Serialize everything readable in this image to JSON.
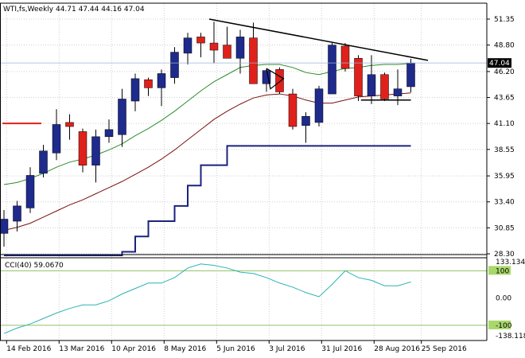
{
  "header": {
    "symbol_line": "WTI,fs,Weekly  44.71 47.44 44.16 47.04"
  },
  "indicator": {
    "label": "CCI(40) 59.0670",
    "levels": [
      "100",
      "-100"
    ]
  },
  "colors": {
    "bull": "#1e2a8c",
    "bear": "#e0211b",
    "ma_fast": "#2e8b2e",
    "ma_slow": "#7a1010",
    "support": "#1a237e",
    "trend": "#000000",
    "cci": "#2bb3b3",
    "grid": "#cfcfcf",
    "level_line": "#90c060"
  },
  "chart_data": [
    {
      "type": "candlestick",
      "symbol": "WTI,fs",
      "timeframe": "Weekly",
      "ylim": [
        28.3,
        52.5
      ],
      "y_ticks": [
        "51.35",
        "48.80",
        "46.20",
        "43.65",
        "41.10",
        "38.55",
        "35.95",
        "33.40",
        "30.85",
        "28.30"
      ],
      "current_price": "47.04",
      "x_labels": [
        "14 Feb 2016",
        "13 Mar 2016",
        "10 Apr 2016",
        "8 May 2016",
        "5 Jun 2016",
        "3 Jul 2016",
        "31 Jul 2016",
        "28 Aug 2016",
        "25 Sep 2016"
      ],
      "candles": [
        {
          "o": 30.3,
          "h": 32.6,
          "l": 29.0,
          "c": 31.7
        },
        {
          "o": 31.5,
          "h": 33.5,
          "l": 30.5,
          "c": 33.0
        },
        {
          "o": 32.8,
          "h": 36.8,
          "l": 32.3,
          "c": 36.0
        },
        {
          "o": 36.2,
          "h": 39.0,
          "l": 35.8,
          "c": 38.4
        },
        {
          "o": 38.2,
          "h": 42.5,
          "l": 37.5,
          "c": 41.0
        },
        {
          "o": 41.2,
          "h": 42.0,
          "l": 39.5,
          "c": 40.8
        },
        {
          "o": 40.3,
          "h": 40.6,
          "l": 36.3,
          "c": 37.0
        },
        {
          "o": 37.0,
          "h": 40.5,
          "l": 35.3,
          "c": 39.8
        },
        {
          "o": 39.8,
          "h": 41.5,
          "l": 39.2,
          "c": 40.5
        },
        {
          "o": 40.0,
          "h": 44.5,
          "l": 38.8,
          "c": 43.5
        },
        {
          "o": 43.3,
          "h": 46.0,
          "l": 42.3,
          "c": 45.5
        },
        {
          "o": 45.4,
          "h": 45.6,
          "l": 43.8,
          "c": 44.6
        },
        {
          "o": 44.6,
          "h": 46.4,
          "l": 42.8,
          "c": 46.0
        },
        {
          "o": 45.6,
          "h": 48.6,
          "l": 45.0,
          "c": 48.1
        },
        {
          "o": 48.0,
          "h": 50.0,
          "l": 46.9,
          "c": 49.5
        },
        {
          "o": 49.6,
          "h": 50.0,
          "l": 47.6,
          "c": 49.0
        },
        {
          "o": 49.0,
          "h": 51.1,
          "l": 47.0,
          "c": 48.3
        },
        {
          "o": 48.8,
          "h": 50.6,
          "l": 47.5,
          "c": 47.5
        },
        {
          "o": 47.5,
          "h": 50.3,
          "l": 46.0,
          "c": 49.6
        },
        {
          "o": 49.5,
          "h": 51.0,
          "l": 45.0,
          "c": 45.0
        },
        {
          "o": 45.0,
          "h": 46.5,
          "l": 44.2,
          "c": 46.3
        },
        {
          "o": 46.4,
          "h": 46.6,
          "l": 44.0,
          "c": 44.2
        },
        {
          "o": 44.0,
          "h": 44.5,
          "l": 40.5,
          "c": 40.8
        },
        {
          "o": 40.9,
          "h": 42.2,
          "l": 39.2,
          "c": 41.8
        },
        {
          "o": 41.2,
          "h": 44.8,
          "l": 40.8,
          "c": 44.5
        },
        {
          "o": 44.0,
          "h": 49.0,
          "l": 44.0,
          "c": 48.8
        },
        {
          "o": 48.7,
          "h": 49.0,
          "l": 46.2,
          "c": 46.5
        },
        {
          "o": 47.5,
          "h": 47.8,
          "l": 43.3,
          "c": 43.8
        },
        {
          "o": 43.8,
          "h": 47.8,
          "l": 43.0,
          "c": 45.9
        },
        {
          "o": 45.9,
          "h": 46.1,
          "l": 43.3,
          "c": 43.5
        },
        {
          "o": 43.8,
          "h": 46.4,
          "l": 42.9,
          "c": 44.5
        },
        {
          "o": 44.71,
          "h": 47.44,
          "l": 44.16,
          "c": 47.04
        }
      ],
      "ma_fast": [
        35.1,
        35.3,
        35.7,
        36.2,
        36.8,
        37.3,
        37.6,
        38.0,
        38.5,
        39.1,
        39.9,
        40.6,
        41.4,
        42.3,
        43.3,
        44.3,
        45.2,
        45.9,
        46.6,
        46.8,
        46.9,
        46.9,
        46.6,
        46.1,
        45.9,
        46.2,
        46.5,
        46.6,
        46.8,
        46.9,
        46.9,
        47.0
      ],
      "ma_slow": [
        30.6,
        30.9,
        31.3,
        31.9,
        32.5,
        33.1,
        33.6,
        34.2,
        34.8,
        35.4,
        36.1,
        36.8,
        37.6,
        38.5,
        39.5,
        40.5,
        41.5,
        42.3,
        43.0,
        43.6,
        43.9,
        44.0,
        43.8,
        43.4,
        43.1,
        43.1,
        43.4,
        43.7,
        43.8,
        43.9,
        44.0,
        44.1
      ],
      "support_step": [
        26.5,
        26.5,
        26.5,
        26.5,
        26.5,
        26.5,
        26.5,
        26.5,
        27.5,
        28.5,
        30.0,
        31.5,
        31.5,
        33.0,
        35.0,
        37.0,
        37.0,
        38.9,
        38.9,
        38.9,
        38.9,
        38.9,
        38.9,
        38.9,
        38.9,
        38.9,
        38.9,
        38.9,
        38.9,
        38.9,
        38.9,
        38.9
      ],
      "resistance_level": 41.1,
      "trendline": {
        "from": {
          "bar": 16,
          "price": 51.35
        },
        "to": {
          "bar": 32,
          "price": 47.3
        }
      }
    },
    {
      "type": "line",
      "name": "CCI(40)",
      "ylim": [
        -138.118,
        133.1347
      ],
      "levels": [
        100,
        -100
      ],
      "y_ticks": [
        "133.1347",
        "100",
        "0.00",
        "-100",
        "-138.118"
      ],
      "values": [
        -130,
        -110,
        -95,
        -75,
        -55,
        -38,
        -25,
        -25,
        -10,
        15,
        35,
        55,
        55,
        75,
        110,
        125,
        120,
        110,
        95,
        90,
        75,
        55,
        40,
        20,
        5,
        50,
        100,
        75,
        65,
        45,
        45,
        59.07
      ]
    }
  ]
}
